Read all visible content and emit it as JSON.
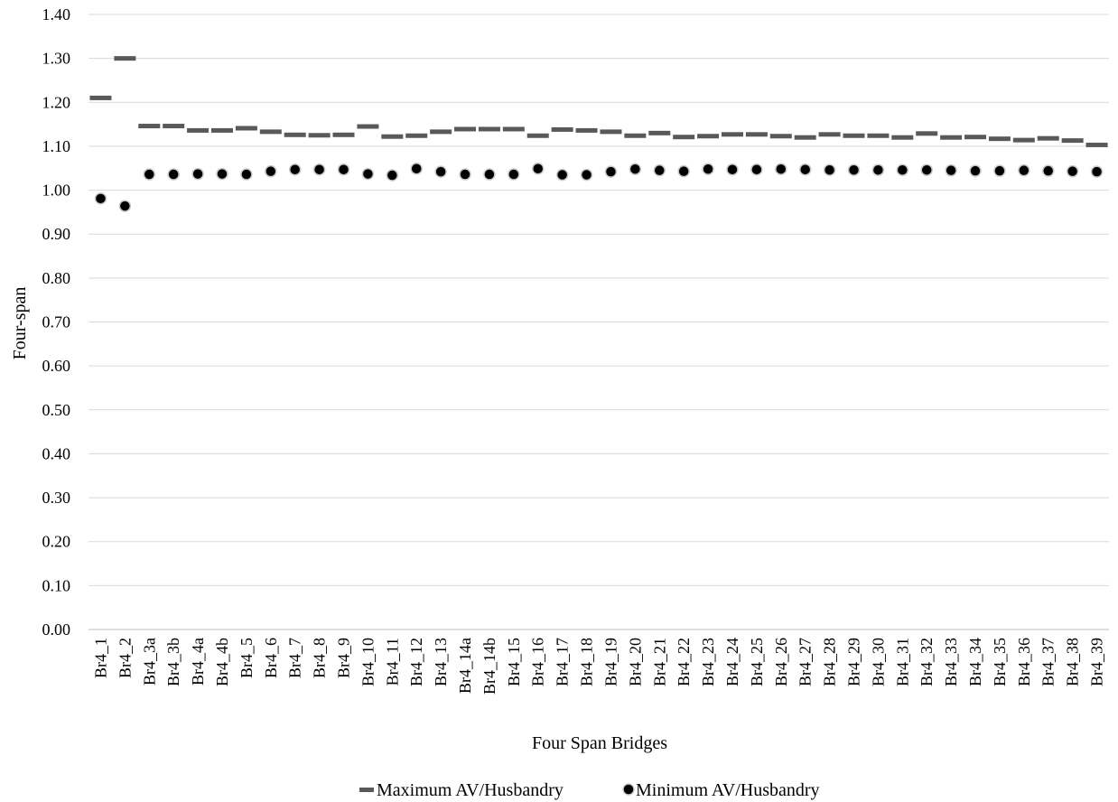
{
  "chart_data": {
    "type": "scatter",
    "title": "",
    "xlabel": "Four Span Bridges",
    "ylabel": "Four-span",
    "ylim": [
      0,
      1.4
    ],
    "yticks": [
      "0.00",
      "0.10",
      "0.20",
      "0.30",
      "0.40",
      "0.50",
      "0.60",
      "0.70",
      "0.80",
      "0.90",
      "1.00",
      "1.10",
      "1.20",
      "1.30",
      "1.40"
    ],
    "grid": true,
    "legend_position": "bottom",
    "categories": [
      "Br4_1",
      "Br4_2",
      "Br4_3a",
      "Br4_3b",
      "Br4_4a",
      "Br4_4b",
      "Br4_5",
      "Br4_6",
      "Br4_7",
      "Br4_8",
      "Br4_9",
      "Br4_10",
      "Br4_11",
      "Br4_12",
      "Br4_13",
      "Br4_14a",
      "Br4_14b",
      "Br4_15",
      "Br4_16",
      "Br4_17",
      "Br4_18",
      "Br4_19",
      "Br4_20",
      "Br4_21",
      "Br4_22",
      "Br4_23",
      "Br4_24",
      "Br4_25",
      "Br4_26",
      "Br4_27",
      "Br4_28",
      "Br4_29",
      "Br4_30",
      "Br4_31",
      "Br4_32",
      "Br4_33",
      "Br4_34",
      "Br4_35",
      "Br4_36",
      "Br4_37",
      "Br4_38",
      "Br4_39"
    ],
    "series": [
      {
        "name": "Maximum AV/Husbandry",
        "marker": "dash",
        "color": "#595959",
        "values": [
          1.21,
          1.3,
          1.146,
          1.146,
          1.136,
          1.136,
          1.141,
          1.133,
          1.126,
          1.125,
          1.126,
          1.145,
          1.122,
          1.124,
          1.133,
          1.139,
          1.139,
          1.139,
          1.124,
          1.138,
          1.136,
          1.133,
          1.124,
          1.13,
          1.121,
          1.123,
          1.127,
          1.127,
          1.123,
          1.12,
          1.127,
          1.124,
          1.124,
          1.12,
          1.129,
          1.12,
          1.121,
          1.117,
          1.114,
          1.118,
          1.113,
          1.103
        ]
      },
      {
        "name": "Minimum AV/Husbandry",
        "marker": "circle",
        "color": "#000000",
        "values": [
          0.981,
          0.964,
          1.036,
          1.036,
          1.037,
          1.037,
          1.036,
          1.043,
          1.047,
          1.047,
          1.047,
          1.037,
          1.034,
          1.049,
          1.042,
          1.036,
          1.036,
          1.036,
          1.049,
          1.035,
          1.035,
          1.042,
          1.048,
          1.045,
          1.043,
          1.048,
          1.047,
          1.047,
          1.048,
          1.047,
          1.046,
          1.046,
          1.046,
          1.046,
          1.046,
          1.045,
          1.044,
          1.044,
          1.045,
          1.044,
          1.043,
          1.042
        ]
      }
    ]
  }
}
